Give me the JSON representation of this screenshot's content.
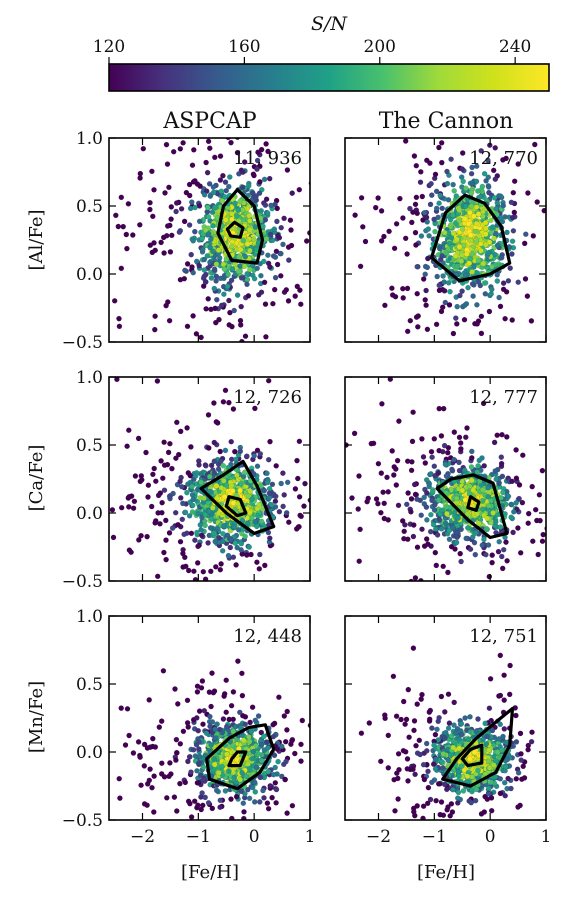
{
  "colorbar": {
    "label": "S/N",
    "min": 120,
    "max": 250,
    "ticks": [
      120,
      160,
      200,
      240
    ],
    "tick_labels": [
      "120",
      "160",
      "200",
      "240"
    ],
    "colormap": "viridis"
  },
  "columns": [
    "ASPCAP",
    "The Cannon"
  ],
  "rows": [
    "[Al/Fe]",
    "[Ca/Fe]",
    "[Mn/Fe]"
  ],
  "chart_data": [
    {
      "type": "scatter",
      "title": "ASPCAP",
      "xlabel": "",
      "ylabel": "[Al/Fe]",
      "xlim": [
        -2.6,
        1.0
      ],
      "ylim": [
        -0.5,
        1.0
      ],
      "xticks": [
        -2,
        -1,
        0,
        1
      ],
      "yticks": [
        -0.5,
        0.0,
        0.5,
        1.0
      ],
      "ytick_labels": [
        "−0.5",
        "0.0",
        "0.5",
        "1.0"
      ],
      "annotation": "11, 936",
      "cloud": {
        "center": [
          -0.35,
          0.3
        ],
        "spread": [
          0.45,
          0.25
        ]
      },
      "contours": [
        {
          "level": "outer",
          "points": [
            [
              -0.3,
              0.62
            ],
            [
              0.0,
              0.5
            ],
            [
              0.15,
              0.25
            ],
            [
              0.05,
              0.08
            ],
            [
              -0.4,
              0.1
            ],
            [
              -0.65,
              0.3
            ],
            [
              -0.55,
              0.5
            ]
          ]
        },
        {
          "level": "inner",
          "points": [
            [
              -0.35,
              0.38
            ],
            [
              -0.2,
              0.34
            ],
            [
              -0.25,
              0.27
            ],
            [
              -0.42,
              0.28
            ],
            [
              -0.48,
              0.33
            ]
          ]
        }
      ]
    },
    {
      "type": "scatter",
      "title": "The Cannon",
      "xlabel": "",
      "ylabel": "",
      "xlim": [
        -2.6,
        1.0
      ],
      "ylim": [
        -0.5,
        1.0
      ],
      "xticks": [
        -2,
        -1,
        0,
        1
      ],
      "yticks": [
        -0.5,
        0.0,
        0.5,
        1.0
      ],
      "annotation": "12, 770",
      "cloud": {
        "center": [
          -0.35,
          0.28
        ],
        "spread": [
          0.45,
          0.28
        ]
      },
      "contours": [
        {
          "level": "outer",
          "points": [
            [
              -0.45,
              0.58
            ],
            [
              -0.1,
              0.52
            ],
            [
              0.2,
              0.35
            ],
            [
              0.35,
              0.08
            ],
            [
              0.0,
              0.0
            ],
            [
              -0.55,
              -0.05
            ],
            [
              -1.05,
              0.12
            ],
            [
              -0.8,
              0.45
            ]
          ]
        }
      ]
    },
    {
      "type": "scatter",
      "title": "",
      "xlabel": "",
      "ylabel": "[Ca/Fe]",
      "xlim": [
        -2.6,
        1.0
      ],
      "ylim": [
        -0.5,
        1.0
      ],
      "xticks": [
        -2,
        -1,
        0,
        1
      ],
      "yticks": [
        -0.5,
        0.0,
        0.5,
        1.0
      ],
      "ytick_labels": [
        "−0.5",
        "0.0",
        "0.5",
        "1.0"
      ],
      "annotation": "12, 726",
      "cloud": {
        "center": [
          -0.4,
          0.08
        ],
        "spread": [
          0.5,
          0.2
        ]
      },
      "contours": [
        {
          "level": "outer",
          "points": [
            [
              -0.2,
              0.38
            ],
            [
              0.05,
              0.2
            ],
            [
              0.35,
              -0.1
            ],
            [
              0.0,
              -0.15
            ],
            [
              -0.5,
              0.0
            ],
            [
              -0.95,
              0.18
            ],
            [
              -0.55,
              0.28
            ]
          ]
        },
        {
          "level": "inner",
          "points": [
            [
              -0.45,
              0.12
            ],
            [
              -0.25,
              0.1
            ],
            [
              -0.15,
              0.0
            ],
            [
              -0.3,
              -0.02
            ],
            [
              -0.5,
              0.05
            ]
          ]
        }
      ]
    },
    {
      "type": "scatter",
      "title": "",
      "xlabel": "",
      "ylabel": "",
      "xlim": [
        -2.6,
        1.0
      ],
      "ylim": [
        -0.5,
        1.0
      ],
      "xticks": [
        -2,
        -1,
        0,
        1
      ],
      "yticks": [
        -0.5,
        0.0,
        0.5,
        1.0
      ],
      "annotation": "12, 777",
      "cloud": {
        "center": [
          -0.35,
          0.08
        ],
        "spread": [
          0.5,
          0.18
        ]
      },
      "contours": [
        {
          "level": "outer",
          "points": [
            [
              -0.3,
              0.28
            ],
            [
              0.05,
              0.22
            ],
            [
              0.3,
              -0.15
            ],
            [
              0.0,
              -0.18
            ],
            [
              -0.4,
              -0.05
            ],
            [
              -0.95,
              0.18
            ],
            [
              -0.7,
              0.25
            ]
          ]
        },
        {
          "level": "inner",
          "points": [
            [
              -0.35,
              0.12
            ],
            [
              -0.2,
              0.08
            ],
            [
              -0.25,
              0.02
            ],
            [
              -0.4,
              0.04
            ]
          ]
        }
      ]
    },
    {
      "type": "scatter",
      "title": "",
      "xlabel": "[Fe/H]",
      "ylabel": "[Mn/Fe]",
      "xlim": [
        -2.6,
        1.0
      ],
      "ylim": [
        -0.5,
        1.0
      ],
      "xticks": [
        -2,
        -1,
        0,
        1
      ],
      "xtick_labels": [
        "−2",
        "−1",
        "0",
        "1"
      ],
      "yticks": [
        -0.5,
        0.0,
        0.5,
        1.0
      ],
      "ytick_labels": [
        "−0.5",
        "0.0",
        "0.5",
        "1.0"
      ],
      "annotation": "12, 448",
      "cloud": {
        "center": [
          -0.35,
          -0.05
        ],
        "spread": [
          0.45,
          0.16
        ]
      },
      "contours": [
        {
          "level": "outer",
          "points": [
            [
              -0.1,
              0.18
            ],
            [
              0.2,
              0.2
            ],
            [
              0.35,
              0.02
            ],
            [
              0.1,
              -0.15
            ],
            [
              -0.3,
              -0.27
            ],
            [
              -0.8,
              -0.2
            ],
            [
              -0.85,
              -0.05
            ],
            [
              -0.45,
              0.1
            ]
          ]
        },
        {
          "level": "inner",
          "points": [
            [
              -0.3,
              0.0
            ],
            [
              -0.15,
              0.0
            ],
            [
              -0.25,
              -0.1
            ],
            [
              -0.45,
              -0.1
            ],
            [
              -0.4,
              -0.05
            ]
          ]
        }
      ]
    },
    {
      "type": "scatter",
      "title": "",
      "xlabel": "[Fe/H]",
      "ylabel": "",
      "xlim": [
        -2.6,
        1.0
      ],
      "ylim": [
        -0.5,
        1.0
      ],
      "xticks": [
        -2,
        -1,
        0,
        1
      ],
      "xtick_labels": [
        "−2",
        "−1",
        "0",
        "1"
      ],
      "yticks": [
        -0.5,
        0.0,
        0.5,
        1.0
      ],
      "annotation": "12, 751",
      "cloud": {
        "center": [
          -0.3,
          -0.05
        ],
        "spread": [
          0.45,
          0.16
        ]
      },
      "contours": [
        {
          "level": "outer",
          "points": [
            [
              0.1,
              0.22
            ],
            [
              0.4,
              0.32
            ],
            [
              0.35,
              0.05
            ],
            [
              0.1,
              -0.15
            ],
            [
              -0.35,
              -0.25
            ],
            [
              -0.85,
              -0.2
            ],
            [
              -0.6,
              -0.05
            ],
            [
              -0.25,
              0.1
            ]
          ]
        },
        {
          "level": "inner",
          "points": [
            [
              -0.35,
              0.02
            ],
            [
              -0.15,
              0.05
            ],
            [
              -0.15,
              -0.08
            ],
            [
              -0.4,
              -0.1
            ],
            [
              -0.5,
              -0.05
            ]
          ]
        }
      ]
    }
  ]
}
